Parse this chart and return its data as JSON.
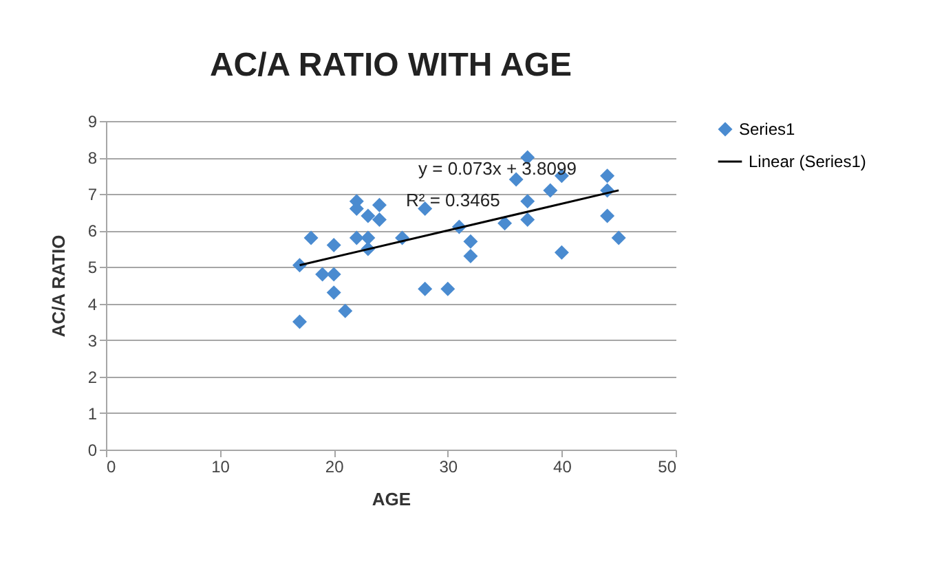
{
  "chart_data": {
    "type": "scatter",
    "title": "AC/A RATIO WITH AGE",
    "xlabel": "AGE",
    "ylabel": "AC/A RATIO",
    "xlim": [
      0,
      50
    ],
    "xticks": [
      0,
      10,
      20,
      30,
      40,
      50
    ],
    "ylim": [
      0,
      9
    ],
    "yticks": [
      0,
      1,
      2,
      3,
      4,
      5,
      6,
      7,
      8,
      9
    ],
    "grid": "y",
    "legend": "right",
    "marker": "diamond",
    "annotations": [
      "y = 0.073x + 3.8099",
      "R² = 0.3465"
    ],
    "series": [
      {
        "name": "Series1",
        "color": "#4a8bd0",
        "x": [
          17,
          17,
          18,
          19,
          20,
          20,
          20,
          21,
          22,
          22,
          22,
          23,
          23,
          23,
          24,
          24,
          26,
          28,
          28,
          30,
          31,
          32,
          32,
          35,
          36,
          37,
          37,
          37,
          39,
          40,
          40,
          44,
          44,
          44,
          45
        ],
        "values": [
          3.5,
          5.05,
          5.8,
          4.8,
          4.8,
          5.6,
          4.3,
          3.8,
          6.8,
          6.6,
          5.8,
          5.8,
          5.5,
          6.4,
          6.7,
          6.3,
          5.8,
          6.6,
          4.4,
          4.4,
          6.1,
          5.7,
          5.3,
          6.2,
          7.4,
          8.0,
          6.8,
          6.3,
          7.1,
          7.5,
          5.4,
          7.5,
          7.1,
          6.4,
          5.8
        ]
      },
      {
        "name": "Linear (Series1)",
        "type": "line",
        "marker": "none",
        "color": "#000000",
        "x": [
          17,
          45
        ],
        "values": [
          5.05,
          7.1
        ]
      }
    ]
  }
}
